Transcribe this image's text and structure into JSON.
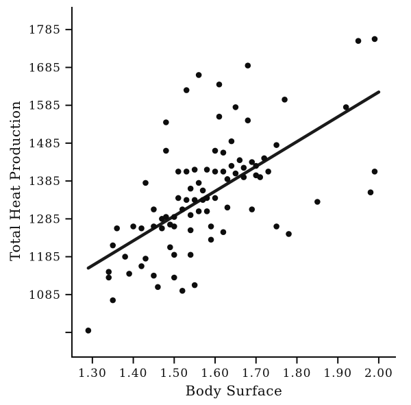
{
  "chart_data": {
    "type": "scatter",
    "title": "",
    "xlabel": "Body Surface",
    "ylabel": "Total Heat Production",
    "xlim": [
      1.25,
      2.042
    ],
    "ylim": [
      920,
      1845
    ],
    "grid": false,
    "legend": "none",
    "axis_color": "#0d0d0d",
    "point_color": "#0d0d0d",
    "line_color": "#1a1a1a",
    "point_radius": 4.3,
    "x_ticks": [
      {
        "value": 1.3,
        "label": "1.30"
      },
      {
        "value": 1.4,
        "label": "1.40"
      },
      {
        "value": 1.5,
        "label": "1.50"
      },
      {
        "value": 1.6,
        "label": "1.60"
      },
      {
        "value": 1.7,
        "label": "1.70"
      },
      {
        "value": 1.8,
        "label": "1.80"
      },
      {
        "value": 1.9,
        "label": "1.90"
      },
      {
        "value": 2.0,
        "label": "2.00"
      }
    ],
    "y_ticks": [
      {
        "value": 1785,
        "label": "1785"
      },
      {
        "value": 1685,
        "label": "1685"
      },
      {
        "value": 1585,
        "label": "1585"
      },
      {
        "value": 1485,
        "label": "1485"
      },
      {
        "value": 1385,
        "label": "1385"
      },
      {
        "value": 1285,
        "label": "1285"
      },
      {
        "value": 1185,
        "label": "1185"
      },
      {
        "value": 1085,
        "label": "1085"
      },
      {
        "value": 985,
        "label": ""
      }
    ],
    "regression_line": {
      "x1": 1.29,
      "y1": 1155,
      "x2": 2.0,
      "y2": 1620
    },
    "points": [
      [
        1.29,
        990
      ],
      [
        1.34,
        1145
      ],
      [
        1.34,
        1130
      ],
      [
        1.35,
        1070
      ],
      [
        1.35,
        1215
      ],
      [
        1.36,
        1260
      ],
      [
        1.38,
        1185
      ],
      [
        1.39,
        1140
      ],
      [
        1.4,
        1265
      ],
      [
        1.42,
        1260
      ],
      [
        1.42,
        1160
      ],
      [
        1.43,
        1380
      ],
      [
        1.43,
        1180
      ],
      [
        1.45,
        1265
      ],
      [
        1.45,
        1310
      ],
      [
        1.45,
        1135
      ],
      [
        1.46,
        1105
      ],
      [
        1.47,
        1285
      ],
      [
        1.47,
        1260
      ],
      [
        1.48,
        1540
      ],
      [
        1.48,
        1465
      ],
      [
        1.48,
        1290
      ],
      [
        1.49,
        1270
      ],
      [
        1.49,
        1210
      ],
      [
        1.5,
        1290
      ],
      [
        1.5,
        1265
      ],
      [
        1.5,
        1190
      ],
      [
        1.5,
        1130
      ],
      [
        1.51,
        1410
      ],
      [
        1.51,
        1340
      ],
      [
        1.52,
        1310
      ],
      [
        1.52,
        1095
      ],
      [
        1.53,
        1625
      ],
      [
        1.53,
        1410
      ],
      [
        1.53,
        1335
      ],
      [
        1.54,
        1365
      ],
      [
        1.54,
        1295
      ],
      [
        1.54,
        1255
      ],
      [
        1.54,
        1190
      ],
      [
        1.55,
        1415
      ],
      [
        1.55,
        1335
      ],
      [
        1.55,
        1110
      ],
      [
        1.56,
        1665
      ],
      [
        1.56,
        1380
      ],
      [
        1.56,
        1305
      ],
      [
        1.57,
        1360
      ],
      [
        1.57,
        1335
      ],
      [
        1.58,
        1415
      ],
      [
        1.58,
        1340
      ],
      [
        1.58,
        1305
      ],
      [
        1.59,
        1265
      ],
      [
        1.59,
        1230
      ],
      [
        1.6,
        1465
      ],
      [
        1.6,
        1410
      ],
      [
        1.6,
        1340
      ],
      [
        1.61,
        1640
      ],
      [
        1.61,
        1555
      ],
      [
        1.62,
        1460
      ],
      [
        1.62,
        1410
      ],
      [
        1.62,
        1250
      ],
      [
        1.63,
        1390
      ],
      [
        1.63,
        1315
      ],
      [
        1.64,
        1490
      ],
      [
        1.64,
        1425
      ],
      [
        1.65,
        1580
      ],
      [
        1.65,
        1405
      ],
      [
        1.66,
        1440
      ],
      [
        1.67,
        1420
      ],
      [
        1.67,
        1395
      ],
      [
        1.68,
        1690
      ],
      [
        1.68,
        1545
      ],
      [
        1.69,
        1435
      ],
      [
        1.69,
        1310
      ],
      [
        1.7,
        1425
      ],
      [
        1.7,
        1400
      ],
      [
        1.71,
        1395
      ],
      [
        1.72,
        1445
      ],
      [
        1.73,
        1410
      ],
      [
        1.75,
        1480
      ],
      [
        1.75,
        1265
      ],
      [
        1.77,
        1600
      ],
      [
        1.78,
        1245
      ],
      [
        1.85,
        1330
      ],
      [
        1.92,
        1580
      ],
      [
        1.95,
        1755
      ],
      [
        1.99,
        1760
      ],
      [
        1.99,
        1410
      ],
      [
        1.98,
        1355
      ]
    ]
  }
}
